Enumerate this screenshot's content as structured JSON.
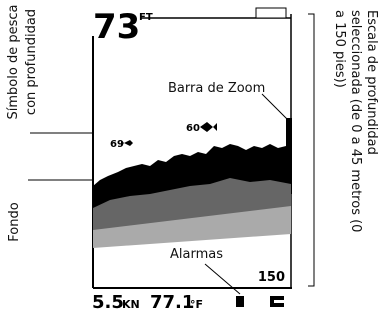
{
  "screen": {
    "depth": "73",
    "depth_unit": "FT",
    "fish_symbols": [
      "69",
      "60"
    ],
    "range_bottom": "150",
    "speed": "5.5",
    "speed_unit": "KN",
    "temperature": "77.1",
    "temperature_unit": "°F"
  },
  "callouts": {
    "fish_symbol": [
      "Símbolo de pesca",
      "con profundidad"
    ],
    "bottom": "Fondo",
    "zoom_bar": "Barra de Zoom",
    "alarms": "Alarmas",
    "depth_scale": [
      "Escala de profundidad",
      "seleccionada (de 0 a 45 metros (0",
      "a 150 pies))"
    ]
  }
}
